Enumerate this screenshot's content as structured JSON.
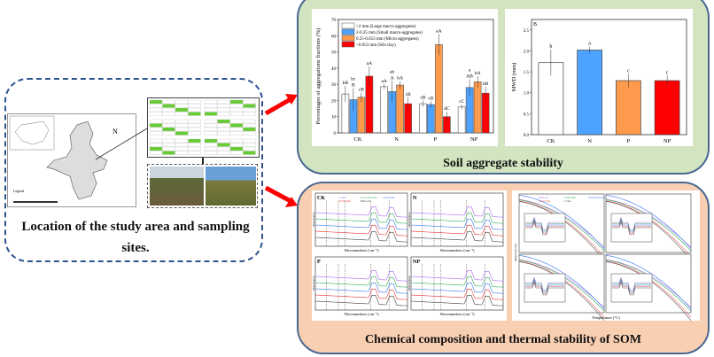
{
  "location": {
    "title_line1": "Location of the study area and sampling",
    "title_line2": "sites.",
    "north_label": "N",
    "legend_label": "Legend"
  },
  "aggregate": {
    "title": "Soil aggregate stability"
  },
  "som": {
    "title": "Chemical composition and thermal stability of SOM",
    "ftir_panels": [
      "CK",
      "N",
      "P",
      " NP"
    ],
    "ftir_xlabel": "Wavenumbers (cm⁻¹)",
    "ftir_ylabel": "Absorbance",
    "ftir_legend": [
      ">2 mm",
      "0.25-0.053 mm",
      "2-0.25 mm",
      "<0.053 mm",
      "Bulk soil"
    ],
    "tga_xlabel": "Temperature (°C)",
    "tga_ylabel": "Mass loss (%)",
    "tga_legend": [
      "Bulk soil",
      "<0.053 mm",
      "0.25-0.053 mm",
      "2-0.25 mm",
      ">2 mm"
    ]
  },
  "colors": {
    "white": "#ffffff",
    "blue": "#4da3ff",
    "orange": "#ff9a4d",
    "red": "#ff0000",
    "arrow": "#ff0000",
    "green_bg": "#d3e5c0",
    "orange_bg": "#f8cfb1"
  },
  "chart_data": [
    {
      "type": "bar",
      "categories": [
        "CK",
        "N",
        "P",
        "NP"
      ],
      "ylabel": "Percentages of aggregations fractions (%)",
      "ylim": [
        0,
        70
      ],
      "yticks": [
        0,
        10,
        20,
        30,
        40,
        50,
        60,
        70
      ],
      "legend_placement": "top-left",
      "series": [
        {
          "name": ">2 mm (Large macro-aggregates)",
          "color": "#ffffff",
          "values": [
            24,
            28.5,
            18,
            16
          ],
          "errors": [
            5,
            1.5,
            2,
            1.5
          ],
          "labels": [
            "bB",
            "aA",
            "cB",
            "cC"
          ]
        },
        {
          "name": "2-0.25 mm (Small macro-aggregates)",
          "color": "#4da3ff",
          "values": [
            20.5,
            25.5,
            17.5,
            28
          ],
          "errors": [
            7,
            6.5,
            2,
            5
          ],
          "labels": [
            "bc\nB",
            "ab\nA",
            "cB",
            "a\nAB"
          ]
        },
        {
          "name": "0.25-0.053 mm (Micro-aggregates)",
          "color": "#ff9a4d",
          "values": [
            22,
            29.5,
            54.5,
            31.5
          ],
          "errors": [
            3,
            2.5,
            6.5,
            3.5
          ],
          "labels": [
            "cB",
            "bA",
            "aA",
            "bA"
          ]
        },
        {
          "name": "<0.053 mm (Silt-clay)",
          "color": "#ff0000",
          "values": [
            35,
            18,
            10,
            24.5
          ],
          "errors": [
            6,
            4,
            3,
            4
          ],
          "labels": [
            "aA",
            "cB",
            "dC",
            "bB"
          ]
        }
      ]
    },
    {
      "type": "bar",
      "panel_label": "B",
      "categories": [
        "CK",
        "N",
        "P",
        "NP"
      ],
      "ylabel": "MWD (mm)",
      "ylim": [
        0,
        2.75
      ],
      "yticks": [
        0,
        0.5,
        1.0,
        1.5,
        2.0,
        2.5
      ],
      "values": [
        1.72,
        2.02,
        1.29,
        1.29
      ],
      "errors": [
        0.31,
        0.08,
        0.16,
        0.12
      ],
      "labels": [
        "b",
        "a",
        "c",
        "c"
      ],
      "colors": [
        "#ffffff",
        "#4da3ff",
        "#ff9a4d",
        "#ff0000"
      ]
    }
  ]
}
